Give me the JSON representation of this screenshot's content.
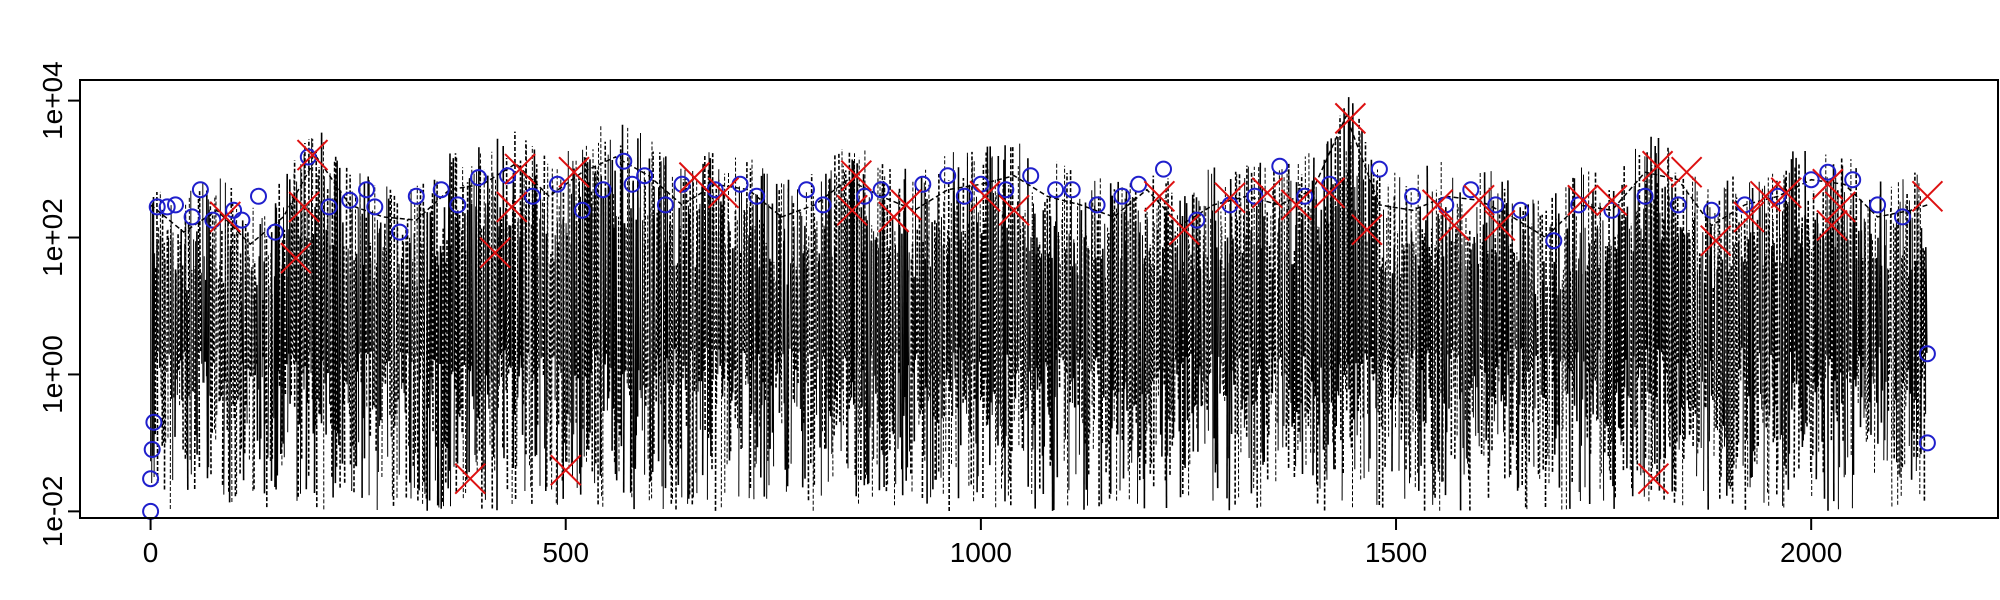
{
  "chart_data": {
    "type": "line",
    "title": "",
    "xlabel": "",
    "ylabel": "",
    "xlim": [
      -85,
      2225
    ],
    "ylim": [
      0.008,
      20000
    ],
    "y_scale": "log",
    "grid": false,
    "legend": "none",
    "x_ticks": [
      {
        "value": 0,
        "label": "0"
      },
      {
        "value": 500,
        "label": "500"
      },
      {
        "value": 1000,
        "label": "1000"
      },
      {
        "value": 1500,
        "label": "1500"
      },
      {
        "value": 2000,
        "label": "2000"
      }
    ],
    "y_ticks": [
      {
        "value": 0.01,
        "label": "1e-02"
      },
      {
        "value": 1,
        "label": "1e+00"
      },
      {
        "value": 100,
        "label": "1e+02"
      },
      {
        "value": 10000,
        "label": "1e+04"
      }
    ],
    "series": [
      {
        "style": "solid-and-dashed dense spikes",
        "color": "#000000",
        "x": [
          0,
          40,
          80,
          120,
          160,
          200,
          240,
          280,
          320,
          360,
          400,
          440,
          480,
          520,
          560,
          600,
          640,
          680,
          720,
          760,
          800,
          840,
          880,
          920,
          960,
          1000,
          1040,
          1080,
          1120,
          1160,
          1200,
          1240,
          1280,
          1320,
          1360,
          1400,
          1440,
          1480,
          1520,
          1560,
          1600,
          1640,
          1680,
          1720,
          1760,
          1800,
          1840,
          1880,
          1920,
          1960,
          2000,
          2040,
          2080,
          2120,
          2140
        ],
        "y": [
          300,
          120,
          250,
          80,
          200,
          1500,
          300,
          200,
          180,
          500,
          600,
          1200,
          400,
          900,
          1500,
          800,
          300,
          600,
          500,
          200,
          300,
          700,
          400,
          250,
          500,
          600,
          800,
          400,
          300,
          200,
          500,
          150,
          300,
          400,
          300,
          500,
          6000,
          300,
          250,
          400,
          350,
          200,
          100,
          300,
          250,
          900,
          700,
          150,
          300,
          400,
          700,
          600,
          200,
          250,
          300
        ]
      }
    ],
    "markers": [
      {
        "symbol": "circle",
        "color": "#1f1fcc",
        "points": [
          {
            "x": 0,
            "y": 0.01
          },
          {
            "x": 0,
            "y": 0.03
          },
          {
            "x": 2,
            "y": 0.08
          },
          {
            "x": 4,
            "y": 0.2
          },
          {
            "x": 8,
            "y": 280
          },
          {
            "x": 20,
            "y": 280
          },
          {
            "x": 30,
            "y": 300
          },
          {
            "x": 50,
            "y": 200
          },
          {
            "x": 60,
            "y": 500
          },
          {
            "x": 75,
            "y": 180
          },
          {
            "x": 100,
            "y": 250
          },
          {
            "x": 110,
            "y": 180
          },
          {
            "x": 130,
            "y": 400
          },
          {
            "x": 150,
            "y": 120
          },
          {
            "x": 190,
            "y": 1500
          },
          {
            "x": 215,
            "y": 280
          },
          {
            "x": 240,
            "y": 350
          },
          {
            "x": 260,
            "y": 500
          },
          {
            "x": 270,
            "y": 280
          },
          {
            "x": 300,
            "y": 120
          },
          {
            "x": 320,
            "y": 400
          },
          {
            "x": 350,
            "y": 500
          },
          {
            "x": 370,
            "y": 300
          },
          {
            "x": 395,
            "y": 750
          },
          {
            "x": 430,
            "y": 800
          },
          {
            "x": 460,
            "y": 400
          },
          {
            "x": 490,
            "y": 600
          },
          {
            "x": 520,
            "y": 250
          },
          {
            "x": 545,
            "y": 500
          },
          {
            "x": 570,
            "y": 1300
          },
          {
            "x": 580,
            "y": 600
          },
          {
            "x": 595,
            "y": 800
          },
          {
            "x": 620,
            "y": 300
          },
          {
            "x": 640,
            "y": 600
          },
          {
            "x": 680,
            "y": 500
          },
          {
            "x": 710,
            "y": 600
          },
          {
            "x": 730,
            "y": 400
          },
          {
            "x": 790,
            "y": 500
          },
          {
            "x": 810,
            "y": 300
          },
          {
            "x": 860,
            "y": 400
          },
          {
            "x": 880,
            "y": 500
          },
          {
            "x": 930,
            "y": 600
          },
          {
            "x": 960,
            "y": 800
          },
          {
            "x": 980,
            "y": 400
          },
          {
            "x": 1000,
            "y": 600
          },
          {
            "x": 1030,
            "y": 500
          },
          {
            "x": 1060,
            "y": 800
          },
          {
            "x": 1090,
            "y": 500
          },
          {
            "x": 1110,
            "y": 500
          },
          {
            "x": 1140,
            "y": 300
          },
          {
            "x": 1170,
            "y": 400
          },
          {
            "x": 1190,
            "y": 600
          },
          {
            "x": 1220,
            "y": 1000
          },
          {
            "x": 1260,
            "y": 180
          },
          {
            "x": 1300,
            "y": 300
          },
          {
            "x": 1330,
            "y": 400
          },
          {
            "x": 1360,
            "y": 1100
          },
          {
            "x": 1390,
            "y": 400
          },
          {
            "x": 1420,
            "y": 600
          },
          {
            "x": 1480,
            "y": 1000
          },
          {
            "x": 1520,
            "y": 400
          },
          {
            "x": 1560,
            "y": 300
          },
          {
            "x": 1590,
            "y": 500
          },
          {
            "x": 1620,
            "y": 300
          },
          {
            "x": 1650,
            "y": 250
          },
          {
            "x": 1690,
            "y": 90
          },
          {
            "x": 1720,
            "y": 300
          },
          {
            "x": 1760,
            "y": 250
          },
          {
            "x": 1800,
            "y": 400
          },
          {
            "x": 1840,
            "y": 300
          },
          {
            "x": 1880,
            "y": 250
          },
          {
            "x": 1920,
            "y": 300
          },
          {
            "x": 1960,
            "y": 400
          },
          {
            "x": 2000,
            "y": 700
          },
          {
            "x": 2020,
            "y": 900
          },
          {
            "x": 2050,
            "y": 700
          },
          {
            "x": 2080,
            "y": 300
          },
          {
            "x": 2110,
            "y": 200
          },
          {
            "x": 2140,
            "y": 2
          },
          {
            "x": 2140,
            "y": 0.1
          }
        ]
      },
      {
        "symbol": "x",
        "color": "#dd1111",
        "points": [
          {
            "x": 90,
            "y": 200
          },
          {
            "x": 175,
            "y": 50
          },
          {
            "x": 185,
            "y": 280
          },
          {
            "x": 195,
            "y": 1600
          },
          {
            "x": 385,
            "y": 0.03
          },
          {
            "x": 415,
            "y": 60
          },
          {
            "x": 435,
            "y": 280
          },
          {
            "x": 445,
            "y": 1000
          },
          {
            "x": 500,
            "y": 0.04
          },
          {
            "x": 510,
            "y": 900
          },
          {
            "x": 655,
            "y": 750
          },
          {
            "x": 690,
            "y": 450
          },
          {
            "x": 845,
            "y": 250
          },
          {
            "x": 850,
            "y": 800
          },
          {
            "x": 895,
            "y": 200
          },
          {
            "x": 910,
            "y": 300
          },
          {
            "x": 1005,
            "y": 400
          },
          {
            "x": 1040,
            "y": 250
          },
          {
            "x": 1215,
            "y": 400
          },
          {
            "x": 1245,
            "y": 130
          },
          {
            "x": 1300,
            "y": 380
          },
          {
            "x": 1345,
            "y": 450
          },
          {
            "x": 1380,
            "y": 300
          },
          {
            "x": 1420,
            "y": 450
          },
          {
            "x": 1445,
            "y": 5500
          },
          {
            "x": 1465,
            "y": 130
          },
          {
            "x": 1550,
            "y": 300
          },
          {
            "x": 1570,
            "y": 150
          },
          {
            "x": 1600,
            "y": 350
          },
          {
            "x": 1625,
            "y": 150
          },
          {
            "x": 1725,
            "y": 350
          },
          {
            "x": 1760,
            "y": 350
          },
          {
            "x": 1810,
            "y": 0.03
          },
          {
            "x": 1815,
            "y": 1100
          },
          {
            "x": 1850,
            "y": 900
          },
          {
            "x": 1885,
            "y": 90
          },
          {
            "x": 1925,
            "y": 200
          },
          {
            "x": 1945,
            "y": 400
          },
          {
            "x": 1970,
            "y": 450
          },
          {
            "x": 2020,
            "y": 600
          },
          {
            "x": 2025,
            "y": 150
          },
          {
            "x": 2035,
            "y": 280
          },
          {
            "x": 2140,
            "y": 400
          }
        ]
      }
    ]
  }
}
